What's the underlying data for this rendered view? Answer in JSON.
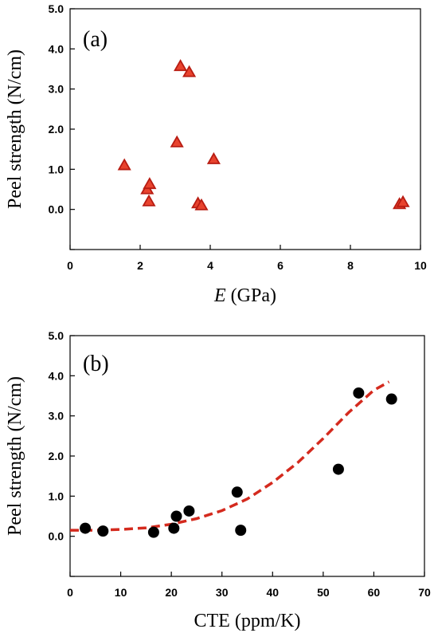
{
  "chart_data": [
    {
      "type": "scatter",
      "panel_label": "(a)",
      "xlabel_italic": "E",
      "xlabel_rest": " (GPa)",
      "ylabel": "Peel strength (N/cm)",
      "xlim": [
        0,
        10
      ],
      "ylim": [
        -1,
        5
      ],
      "xticks": [
        0,
        2,
        4,
        6,
        8,
        10
      ],
      "yticks": [
        -1,
        0,
        1,
        2,
        3,
        4,
        5
      ],
      "xtick_labels": [
        "0",
        "2",
        "4",
        "6",
        "8",
        "10"
      ],
      "ytick_labels": [
        "",
        "0.0",
        "1.0",
        "2.0",
        "3.0",
        "4.0",
        "5.0"
      ],
      "marker": "triangle",
      "marker_color": "#e8432e",
      "marker_edge": "#b81c12",
      "points": [
        {
          "x": 1.55,
          "y": 1.1
        },
        {
          "x": 2.2,
          "y": 0.5
        },
        {
          "x": 2.27,
          "y": 0.63
        },
        {
          "x": 2.25,
          "y": 0.2
        },
        {
          "x": 3.05,
          "y": 1.67
        },
        {
          "x": 3.15,
          "y": 3.57
        },
        {
          "x": 3.4,
          "y": 3.42
        },
        {
          "x": 3.65,
          "y": 0.15
        },
        {
          "x": 3.75,
          "y": 0.1
        },
        {
          "x": 4.1,
          "y": 1.25
        },
        {
          "x": 9.4,
          "y": 0.13
        },
        {
          "x": 9.5,
          "y": 0.18
        }
      ]
    },
    {
      "type": "scatter",
      "panel_label": "(b)",
      "xlabel": "CTE (ppm/K)",
      "ylabel": "Peel strength (N/cm)",
      "xlim": [
        0,
        70
      ],
      "ylim": [
        -1,
        5
      ],
      "xticks": [
        0,
        10,
        20,
        30,
        40,
        50,
        60,
        70
      ],
      "yticks": [
        -1,
        0,
        1,
        2,
        3,
        4,
        5
      ],
      "xtick_labels": [
        "0",
        "10",
        "20",
        "30",
        "40",
        "50",
        "60",
        "70"
      ],
      "ytick_labels": [
        "",
        "0.0",
        "1.0",
        "2.0",
        "3.0",
        "4.0",
        "5.0"
      ],
      "marker": "circle",
      "marker_color": "#000000",
      "points": [
        {
          "x": 3,
          "y": 0.2
        },
        {
          "x": 6.5,
          "y": 0.13
        },
        {
          "x": 16.5,
          "y": 0.1
        },
        {
          "x": 20.5,
          "y": 0.2
        },
        {
          "x": 21,
          "y": 0.5
        },
        {
          "x": 23.5,
          "y": 0.63
        },
        {
          "x": 33,
          "y": 1.1
        },
        {
          "x": 33.7,
          "y": 0.15
        },
        {
          "x": 53,
          "y": 1.67
        },
        {
          "x": 57,
          "y": 3.57
        },
        {
          "x": 63.5,
          "y": 3.42
        }
      ],
      "fit_curve": {
        "style": "dashed",
        "color": "#d42a1e",
        "x": [
          0,
          5,
          10,
          15,
          20,
          25,
          30,
          35,
          40,
          45,
          50,
          55,
          60,
          63
        ],
        "y": [
          0.15,
          0.15,
          0.17,
          0.21,
          0.3,
          0.44,
          0.64,
          0.93,
          1.34,
          1.84,
          2.44,
          3.08,
          3.64,
          3.85
        ]
      }
    }
  ]
}
